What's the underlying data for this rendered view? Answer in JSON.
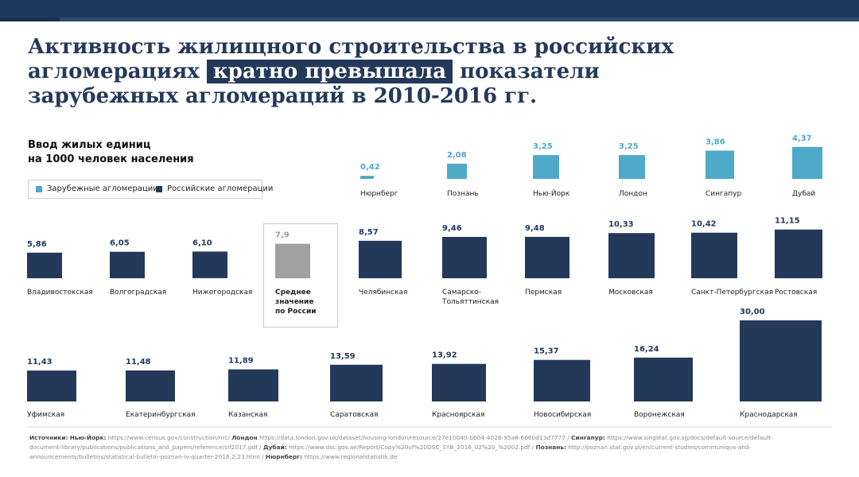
{
  "title": {
    "line1": "Активность жилищного строительства в российских",
    "line2_before": "агломерациях",
    "line2_highlight": "кратно превышала",
    "line2_after": "показатели",
    "line3": "зарубежных агломераций в 2010-2016 гг."
  },
  "subtitle": {
    "line1": "Ввод жилых единиц",
    "line2": "на 1000 человек населения"
  },
  "legend": {
    "foreign": "Зарубежные агломерации",
    "russian": "Российские агломерации"
  },
  "colors": {
    "foreign": "#4eaac8",
    "russian": "#24395a",
    "average": "#a0a0a0",
    "title": "#24395a"
  },
  "chart_data": {
    "type": "bar",
    "title": "Ввод жилых единиц на 1000 человек населения",
    "unit": "жилых единиц на 1000 человек",
    "series": [
      {
        "name": "Зарубежные агломерации",
        "categories": [
          "Нюрнберг",
          "Познань",
          "Нью-Йорк",
          "Лондон",
          "Сингапур",
          "Дубай"
        ],
        "values": [
          0.42,
          2.08,
          3.25,
          3.25,
          3.86,
          4.37
        ],
        "labels": [
          "0,42",
          "2,08",
          "3,25",
          "3,25",
          "3,86",
          "4,37"
        ]
      },
      {
        "name": "Российские агломерации (ряд 1)",
        "categories": [
          "Владивостокская",
          "Волгоградская",
          "Нижегородская",
          "Среднее значение по России",
          "Челябинская",
          "Самарско-Тольяттинская",
          "Пермская",
          "Московская",
          "Санкт-Петербургская",
          "Ростовская"
        ],
        "values": [
          5.86,
          6.05,
          6.1,
          7.9,
          8.57,
          9.46,
          9.48,
          10.33,
          10.42,
          11.15
        ],
        "labels": [
          "5,86",
          "6,05",
          "6,10",
          "7,9",
          "8,57",
          "9,46",
          "9,48",
          "10,33",
          "10,42",
          "11,15"
        ]
      },
      {
        "name": "Российские агломерации (ряд 2)",
        "categories": [
          "Уфимская",
          "Екатеринбургская",
          "Казанская",
          "Саратовская",
          "Красноярская",
          "Новосибирская",
          "Воронежская",
          "Краснодарская"
        ],
        "values": [
          11.43,
          11.48,
          11.89,
          13.59,
          13.92,
          15.37,
          16.24,
          30.0
        ],
        "labels": [
          "11,43",
          "11,48",
          "11,89",
          "13,59",
          "13,92",
          "15,37",
          "16,24",
          "30,00"
        ]
      }
    ],
    "category_display": {
      "Самарско-Тольяттинская": [
        "Самарско-",
        "Тольяттинская"
      ],
      "Среднее значение по России": [
        "Среднее",
        "значение",
        "по России"
      ]
    },
    "highlight_category": "Среднее значение по России"
  },
  "sources": {
    "label": "Источники:",
    "ny_label": "Нью-Йорк:",
    "ny_text": "https://www.census.gov/construction/nrc/",
    "london_label": "Лондон",
    "london_text": "https://data.london.gov.uk/dataset/housing-london/resource/27e10040-bb04-4028-95a6-606bd13d7777 /",
    "sg_label": "Сингапур:",
    "sg_text": "https://www.singstat.gov.sg/docs/default-source/default-document-library/publications/publications_and_papers/reference/sif2017.pdf /",
    "dubai_label": "Дубай:",
    "dubai_text": "https://www.dsc.gov.ae/Report/Copy%20of%20DSC_SYB_2016_02%20_%2002.pdf /",
    "poznan_label": "Познань:",
    "poznan_text": "http://poznan.stat.gov.pl/en/current-studies/communiqus-and-announcements/bulletins/statistical-bulletin-poznan-iv-quarter-2016,2,23.html /",
    "nuremberg_label": "Нюрнберг:",
    "nuremberg_text": "https://www.regionalstatistik.de"
  }
}
